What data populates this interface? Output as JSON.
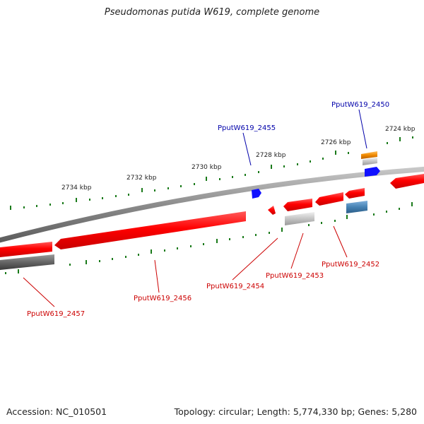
{
  "title": "Pseudomonas putida W619, complete genome",
  "footer": {
    "accession": "Accession: NC_010501",
    "summary": "Topology: circular; Length: 5,774,330 bp; Genes: 5,280"
  },
  "colors": {
    "cds": "#ff0000",
    "gene_label_top": "#0000aa",
    "gene_label_bottom": "#cc0000",
    "pseudo": "#1010ff",
    "backbone": "#808080",
    "tick": "#1a7a1a",
    "orange": "#f08a00",
    "steel": "#4682b4"
  },
  "scale_labels": [
    "2724 kbp",
    "2726 kbp",
    "2728 kbp",
    "2730 kbp",
    "2732 kbp",
    "2734 kbp"
  ],
  "gene_labels_top": [
    "PputW619_2450",
    "PputW619_2455"
  ],
  "gene_labels_bottom": [
    "PputW619_2452",
    "PputW619_2453",
    "PputW619_2454",
    "PputW619_2456",
    "PputW619_2457"
  ]
}
